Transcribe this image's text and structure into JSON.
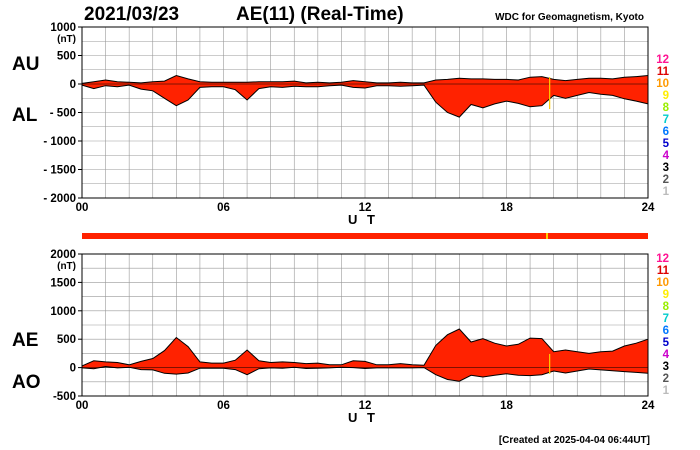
{
  "header": {
    "date": "2021/03/23",
    "title": "AE(11) (Real-Time)",
    "org": "WDC for Geomagnetism, Kyoto"
  },
  "footer": {
    "created": "[Created at 2025-04-04 06:44UT]"
  },
  "station_key": {
    "labels": [
      "12",
      "11",
      "10",
      "9",
      "8",
      "7",
      "6",
      "5",
      "4",
      "3",
      "2",
      "1"
    ],
    "colors": [
      "#ff1493",
      "#dd0000",
      "#ff9900",
      "#ffee00",
      "#99ee00",
      "#00cccc",
      "#0077ff",
      "#0000cc",
      "#cc00cc",
      "#000000",
      "#555555",
      "#bbbbbb"
    ]
  },
  "colors": {
    "fill": "#ff2200",
    "stroke": "#000000",
    "grid": "#999999",
    "bar": "#ff2200",
    "gap": "#ffcc00"
  },
  "chart_data": [
    {
      "type": "area",
      "side_labels": [
        "AU",
        "AL"
      ],
      "unit": "(nT)",
      "xlabel": "U T",
      "xlim": [
        0,
        24
      ],
      "ylim": [
        -2000,
        1000
      ],
      "x_ticks": [
        0,
        6,
        12,
        18,
        24
      ],
      "x_tick_labels": [
        "00",
        "06",
        "12",
        "18",
        "24"
      ],
      "y_ticks": [
        1000,
        500,
        0,
        -500,
        -1000,
        -1500,
        -2000
      ],
      "y_tick_labels": [
        "1000",
        "500",
        "0",
        "- 500",
        "- 1000",
        "- 1500",
        "- 2000"
      ],
      "grid": true,
      "x_hours": [
        0,
        0.5,
        1,
        1.5,
        2,
        2.5,
        3,
        3.5,
        4,
        4.5,
        5,
        5.5,
        6,
        6.5,
        7,
        7.5,
        8,
        8.5,
        9,
        9.5,
        10,
        10.5,
        11,
        11.5,
        12,
        12.5,
        13,
        13.5,
        14,
        14.5,
        15,
        15.5,
        16,
        16.5,
        17,
        17.5,
        18,
        18.5,
        19,
        19.5,
        20,
        20.5,
        21,
        21.5,
        22,
        22.5,
        23,
        23.5,
        24
      ],
      "series": [
        {
          "name": "AU",
          "values": [
            10,
            40,
            70,
            40,
            30,
            20,
            40,
            50,
            150,
            90,
            40,
            30,
            30,
            30,
            30,
            40,
            40,
            40,
            50,
            20,
            30,
            20,
            30,
            60,
            40,
            20,
            20,
            30,
            20,
            20,
            70,
            80,
            100,
            90,
            90,
            80,
            80,
            70,
            120,
            130,
            80,
            60,
            80,
            100,
            100,
            90,
            120,
            130,
            150
          ]
        },
        {
          "name": "AL",
          "values": [
            -20,
            -80,
            -30,
            -50,
            -20,
            -90,
            -120,
            -250,
            -380,
            -280,
            -60,
            -50,
            -50,
            -100,
            -280,
            -80,
            -50,
            -60,
            -40,
            -50,
            -50,
            -30,
            -20,
            -60,
            -70,
            -30,
            -30,
            -40,
            -30,
            -20,
            -320,
            -500,
            -580,
            -360,
            -420,
            -350,
            -300,
            -340,
            -400,
            -380,
            -200,
            -250,
            -200,
            -150,
            -180,
            -200,
            -260,
            -300,
            -350
          ]
        }
      ]
    },
    {
      "type": "area",
      "side_labels": [
        "AE",
        "AO"
      ],
      "unit": "(nT)",
      "xlabel": "U T",
      "xlim": [
        0,
        24
      ],
      "ylim": [
        -500,
        2000
      ],
      "x_ticks": [
        0,
        6,
        12,
        18,
        24
      ],
      "x_tick_labels": [
        "00",
        "06",
        "12",
        "18",
        "24"
      ],
      "y_ticks": [
        2000,
        1500,
        1000,
        500,
        0,
        -500
      ],
      "y_tick_labels": [
        "2000",
        "1500",
        "1000",
        "500",
        "0",
        "-500"
      ],
      "grid": true,
      "x_hours": [
        0,
        0.5,
        1,
        1.5,
        2,
        2.5,
        3,
        3.5,
        4,
        4.5,
        5,
        5.5,
        6,
        6.5,
        7,
        7.5,
        8,
        8.5,
        9,
        9.5,
        10,
        10.5,
        11,
        11.5,
        12,
        12.5,
        13,
        13.5,
        14,
        14.5,
        15,
        15.5,
        16,
        16.5,
        17,
        17.5,
        18,
        18.5,
        19,
        19.5,
        20,
        20.5,
        21,
        21.5,
        22,
        22.5,
        23,
        23.5,
        24
      ],
      "series": [
        {
          "name": "AE",
          "values": [
            30,
            120,
            100,
            90,
            50,
            110,
            160,
            300,
            530,
            370,
            100,
            80,
            80,
            130,
            310,
            120,
            90,
            100,
            90,
            70,
            80,
            50,
            50,
            120,
            110,
            50,
            50,
            70,
            50,
            40,
            390,
            580,
            680,
            450,
            510,
            430,
            380,
            410,
            520,
            510,
            280,
            310,
            280,
            250,
            280,
            290,
            380,
            430,
            500
          ]
        },
        {
          "name": "AO",
          "values": [
            -5,
            -20,
            20,
            -5,
            5,
            -35,
            -40,
            -100,
            -115,
            -95,
            -10,
            -10,
            -10,
            -35,
            -125,
            -20,
            -5,
            -10,
            5,
            -15,
            -10,
            -5,
            5,
            0,
            -15,
            -5,
            -5,
            -5,
            -5,
            0,
            -125,
            -210,
            -240,
            -135,
            -165,
            -135,
            -110,
            -135,
            -140,
            -125,
            -60,
            -95,
            -60,
            -25,
            -40,
            -55,
            -70,
            -85,
            -100
          ]
        }
      ]
    }
  ]
}
